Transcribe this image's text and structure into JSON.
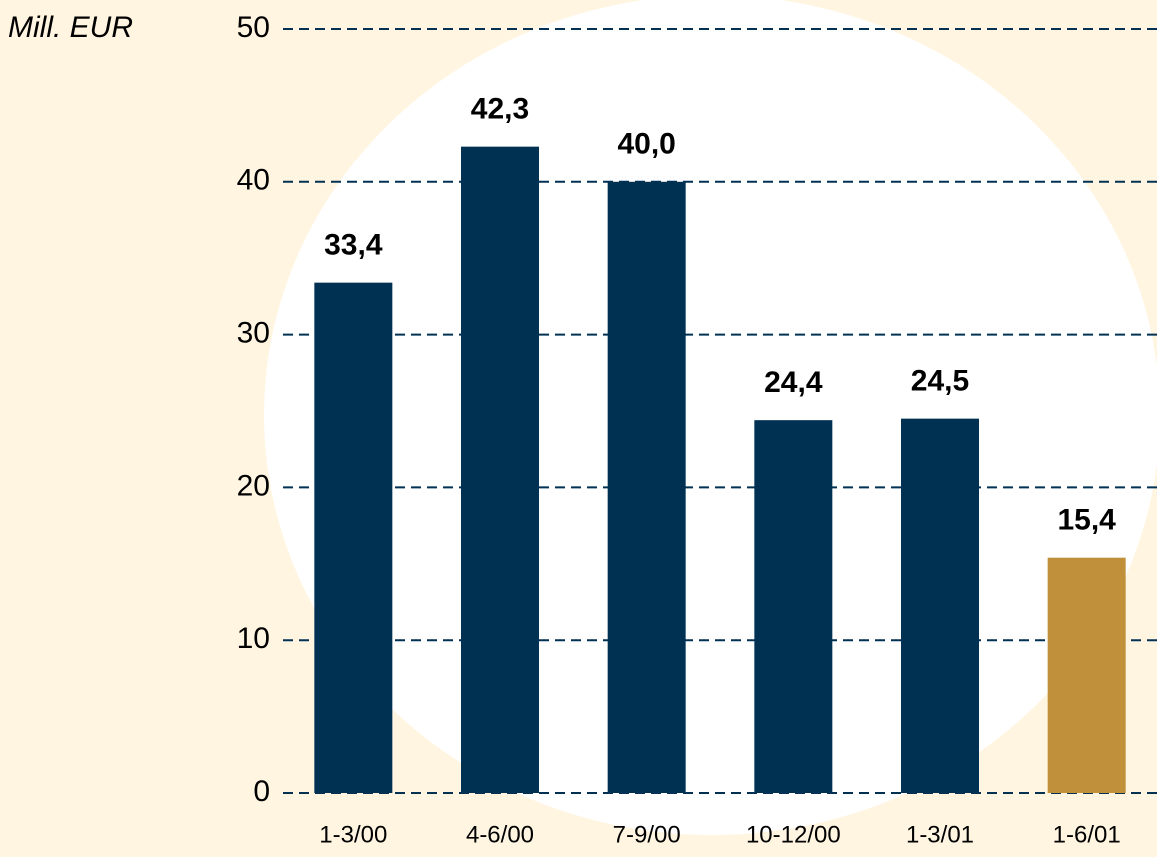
{
  "chart_data": {
    "type": "bar",
    "ylabel": "Mill. EUR",
    "categories": [
      "1-3/00",
      "4-6/00",
      "7-9/00",
      "10-12/00",
      "1-3/01",
      "1-6/01"
    ],
    "values": [
      33.4,
      42.3,
      40.0,
      24.4,
      24.5,
      15.4
    ],
    "value_labels": [
      "33,4",
      "42,3",
      "40,0",
      "24,4",
      "24,5",
      "15,4"
    ],
    "colors": [
      "#003153",
      "#003153",
      "#003153",
      "#003153",
      "#003153",
      "#c0913a"
    ],
    "ylim": [
      0,
      50
    ],
    "yticks": [
      0,
      10,
      20,
      30,
      40,
      50
    ],
    "grid": true
  }
}
